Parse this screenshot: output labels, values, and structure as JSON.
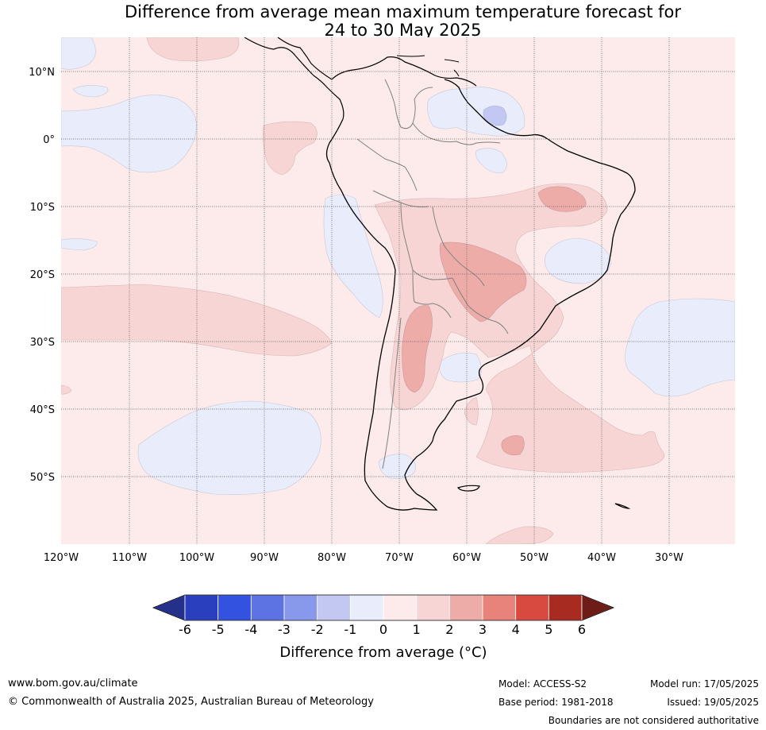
{
  "title": {
    "line1": "Difference from average mean maximum temperature forecast for",
    "line2": "24 to 30 May 2025"
  },
  "map": {
    "lat_labels": [
      "10°N",
      "0°",
      "10°S",
      "20°S",
      "30°S",
      "40°S",
      "50°S"
    ],
    "lon_labels": [
      "120°W",
      "110°W",
      "100°W",
      "90°W",
      "80°W",
      "70°W",
      "60°W",
      "50°W",
      "40°W",
      "30°W"
    ],
    "region": "South America",
    "colors": {
      "plus_0_1": "#fcebea",
      "plus_1_2": "#f6d5d4",
      "plus_2_3": "#eeaca9",
      "minus_0_1": "#e8ecfb",
      "minus_1_2": "#c3c8f2",
      "land_border": "#000000",
      "country_border": "#808080"
    }
  },
  "colorbar": {
    "ticks": [
      "-6",
      "-5",
      "-4",
      "-3",
      "-2",
      "-1",
      "0",
      "1",
      "2",
      "3",
      "4",
      "5",
      "6"
    ],
    "label": "Difference from average (°C)",
    "colors": [
      "#24308a",
      "#2a3fbd",
      "#3352e0",
      "#5d72e3",
      "#8899eb",
      "#c3c8f2",
      "#e8ecfb",
      "#fcebea",
      "#f6d5d4",
      "#eeaca9",
      "#e8837c",
      "#d84a3f",
      "#a82b22",
      "#6e1c17"
    ]
  },
  "footer": {
    "website": "www.bom.gov.au/climate",
    "copyright": "© Commonwealth of Australia 2025, Australian Bureau of Meteorology",
    "model": "Model: ACCESS-S2",
    "base_period": "Base period: 1981-2018",
    "model_run": "Model run: 17/05/2025",
    "issued": "Issued: 19/05/2025",
    "disclaimer": "Boundaries are not considered authoritative"
  }
}
